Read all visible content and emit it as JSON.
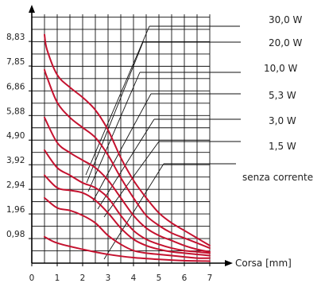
{
  "chart_data": {
    "type": "line",
    "title": "",
    "xlabel": "Corsa [mm]",
    "ylabel": "",
    "xlim": [
      0,
      7
    ],
    "ylim": [
      0,
      10.1
    ],
    "xticks": [
      "0",
      "1",
      "2",
      "3",
      "4",
      "5",
      "6",
      "7"
    ],
    "yticks": [
      "0,98",
      "1,96",
      "2,94",
      "3,92",
      "4,90",
      "5,88",
      "6,86",
      "7,85",
      "8,83"
    ],
    "ytick_values": [
      0.98,
      1.96,
      2.94,
      3.92,
      4.9,
      5.88,
      6.86,
      7.85,
      8.83
    ],
    "grid": true,
    "curve_color": "#c4122f",
    "series": [
      {
        "name": "30,0 W",
        "x": [
          0.5,
          0.6,
          1,
          1.5,
          2,
          2.5,
          3,
          3.5,
          4,
          4.5,
          5,
          5.5,
          6,
          6.5,
          7
        ],
        "y": [
          9.1,
          8.5,
          7.5,
          7.0,
          6.6,
          6.1,
          5.3,
          4.2,
          3.3,
          2.6,
          2.0,
          1.6,
          1.3,
          1.0,
          0.7
        ]
      },
      {
        "name": "20,0 W",
        "x": [
          0.5,
          0.6,
          1,
          1.5,
          2,
          2.5,
          3,
          3.5,
          4,
          4.5,
          5,
          5.5,
          6,
          6.5,
          7
        ],
        "y": [
          7.7,
          7.4,
          6.4,
          5.8,
          5.4,
          5.0,
          4.3,
          3.4,
          2.6,
          1.9,
          1.5,
          1.2,
          1.0,
          0.8,
          0.6
        ]
      },
      {
        "name": "10,0 W",
        "x": [
          0.5,
          1,
          1.5,
          2,
          2.5,
          3,
          3.5,
          4,
          4.5,
          5,
          5.5,
          6,
          6.5,
          7
        ],
        "y": [
          5.8,
          4.8,
          4.4,
          4.1,
          3.8,
          3.3,
          2.6,
          1.9,
          1.4,
          1.1,
          0.9,
          0.7,
          0.55,
          0.45
        ]
      },
      {
        "name": "5,3 W",
        "x": [
          0.5,
          1,
          1.5,
          2,
          2.5,
          3,
          3.5,
          4,
          4.5,
          5,
          5.5,
          6,
          6.5,
          7
        ],
        "y": [
          4.5,
          3.8,
          3.5,
          3.2,
          3.0,
          2.6,
          1.9,
          1.3,
          0.95,
          0.75,
          0.6,
          0.5,
          0.45,
          0.4
        ]
      },
      {
        "name": "3,0 W",
        "x": [
          0.5,
          1,
          1.5,
          2,
          2.5,
          3,
          3.5,
          4,
          4.5,
          5,
          5.5,
          6,
          6.5,
          7
        ],
        "y": [
          3.5,
          3.0,
          2.9,
          2.8,
          2.5,
          2.0,
          1.4,
          0.95,
          0.7,
          0.55,
          0.45,
          0.4,
          0.35,
          0.3
        ]
      },
      {
        "name": "1,5 W",
        "x": [
          0.5,
          1,
          1.5,
          2,
          2.5,
          3,
          3.5,
          4,
          4.5,
          5,
          5.5,
          6,
          6.5,
          7
        ],
        "y": [
          2.6,
          2.2,
          2.1,
          1.9,
          1.6,
          1.1,
          0.75,
          0.5,
          0.4,
          0.35,
          0.3,
          0.25,
          0.2,
          0.2
        ]
      },
      {
        "name": "senza corrente",
        "x": [
          0.5,
          1,
          2,
          3,
          4,
          5,
          6,
          7
        ],
        "y": [
          1.05,
          0.8,
          0.55,
          0.35,
          0.22,
          0.15,
          0.1,
          0.08
        ]
      }
    ],
    "legend_placement": "right"
  }
}
